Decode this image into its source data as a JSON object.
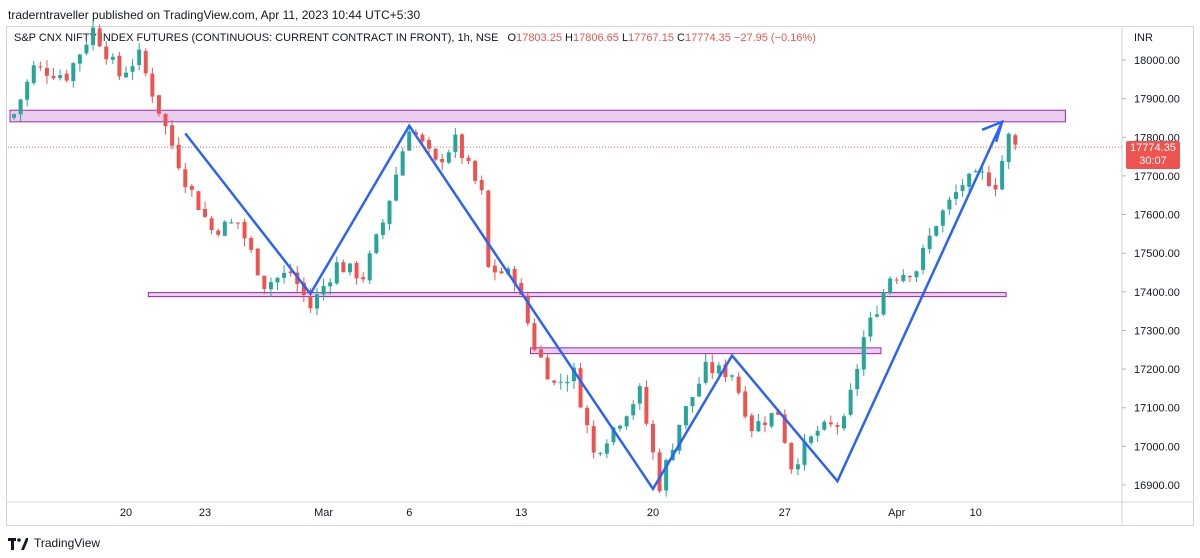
{
  "header": {
    "published": "traderntraveller published on TradingView.com, Apr 11, 2023 10:44 UTC+5:30"
  },
  "legend": {
    "symbol": "S&P CNX NIFTY INDEX FUTURES (CONTINUOUS: CURRENT CONTRACT IN FRONT), 1h, NSE",
    "o_label": "O",
    "o": "17803.25",
    "h_label": "H",
    "h": "17806.65",
    "l_label": "L",
    "l": "17767.15",
    "c_label": "C",
    "c": "17774.35",
    "change": "−27.95 (−0.16%)"
  },
  "currency": "INR",
  "last_price": {
    "value": "17774.35",
    "countdown": "30:07"
  },
  "footer": {
    "brand": "TradingView"
  },
  "colors": {
    "up": "#26a69a",
    "down": "#ef5350",
    "zone_fill": "#e1bee7",
    "zone_stroke": "#9c27b0",
    "pattern_line": "#2962ff",
    "price_line": "#ef5350"
  },
  "chart_data": {
    "type": "candlestick",
    "timeframe": "1h",
    "ylim": [
      16850,
      18100
    ],
    "y_ticks": [
      18000,
      17900,
      17800,
      17700,
      17600,
      17500,
      17400,
      17300,
      17200,
      17100,
      17000,
      16900
    ],
    "y_tick_labels": [
      "18000.00",
      "17900.00",
      "17800.00",
      "17700.00",
      "17600.00",
      "17500.00",
      "17400.00",
      "17300.00",
      "17200.00",
      "17100.00",
      "17000.00",
      "16900.00"
    ],
    "x_tick_labels": [
      {
        "label": "20",
        "bar": 17
      },
      {
        "label": "23",
        "bar": 29
      },
      {
        "label": "Mar",
        "bar": 47
      },
      {
        "label": "6",
        "bar": 60
      },
      {
        "label": "13",
        "bar": 77
      },
      {
        "label": "20",
        "bar": 97
      },
      {
        "label": "27",
        "bar": 117
      },
      {
        "label": "Apr",
        "bar": 134
      },
      {
        "label": "10",
        "bar": 146
      }
    ],
    "bar_count": 160,
    "anchors": [
      {
        "bar": 0,
        "price": 17860
      },
      {
        "bar": 3,
        "price": 17980
      },
      {
        "bar": 8,
        "price": 17960
      },
      {
        "bar": 12,
        "price": 18080
      },
      {
        "bar": 16,
        "price": 17960
      },
      {
        "bar": 19,
        "price": 18010
      },
      {
        "bar": 22,
        "price": 17870
      },
      {
        "bar": 26,
        "price": 17690
      },
      {
        "bar": 30,
        "price": 17560
      },
      {
        "bar": 34,
        "price": 17580
      },
      {
        "bar": 38,
        "price": 17420
      },
      {
        "bar": 42,
        "price": 17450
      },
      {
        "bar": 45,
        "price": 17360
      },
      {
        "bar": 49,
        "price": 17470
      },
      {
        "bar": 53,
        "price": 17440
      },
      {
        "bar": 56,
        "price": 17580
      },
      {
        "bar": 60,
        "price": 17830
      },
      {
        "bar": 64,
        "price": 17730
      },
      {
        "bar": 67,
        "price": 17790
      },
      {
        "bar": 71,
        "price": 17650
      },
      {
        "bar": 72,
        "price": 17460
      },
      {
        "bar": 76,
        "price": 17440
      },
      {
        "bar": 79,
        "price": 17260
      },
      {
        "bar": 82,
        "price": 17160
      },
      {
        "bar": 85,
        "price": 17190
      },
      {
        "bar": 88,
        "price": 16980
      },
      {
        "bar": 92,
        "price": 17070
      },
      {
        "bar": 95,
        "price": 17140
      },
      {
        "bar": 98,
        "price": 16900
      },
      {
        "bar": 101,
        "price": 17060
      },
      {
        "bar": 105,
        "price": 17200
      },
      {
        "bar": 109,
        "price": 17190
      },
      {
        "bar": 112,
        "price": 17050
      },
      {
        "bar": 116,
        "price": 17090
      },
      {
        "bar": 118,
        "price": 16950
      },
      {
        "bar": 122,
        "price": 17040
      },
      {
        "bar": 126,
        "price": 17060
      },
      {
        "bar": 129,
        "price": 17280
      },
      {
        "bar": 133,
        "price": 17440
      },
      {
        "bar": 137,
        "price": 17460
      },
      {
        "bar": 140,
        "price": 17580
      },
      {
        "bar": 144,
        "price": 17680
      },
      {
        "bar": 147,
        "price": 17700
      },
      {
        "bar": 149,
        "price": 17680
      },
      {
        "bar": 151,
        "price": 17800
      },
      {
        "bar": 152,
        "price": 17774
      }
    ],
    "zones": [
      {
        "from_bar": 0,
        "to_bar": 159,
        "top": 17870,
        "bottom": 17840
      },
      {
        "from_bar": 21,
        "to_bar": 150,
        "top": 17398,
        "bottom": 17388
      },
      {
        "from_bar": 79,
        "to_bar": 131,
        "top": 17255,
        "bottom": 17240
      }
    ],
    "pattern_line": [
      {
        "bar": 26,
        "price": 17810
      },
      {
        "bar": 45,
        "price": 17395
      },
      {
        "bar": 60,
        "price": 17830
      },
      {
        "bar": 97,
        "price": 16890
      },
      {
        "bar": 109,
        "price": 17235
      },
      {
        "bar": 125,
        "price": 16910
      },
      {
        "bar": 150,
        "price": 17840
      }
    ],
    "arrow_tip": {
      "bar": 150,
      "price": 17840
    },
    "last_close": 17774.35
  }
}
